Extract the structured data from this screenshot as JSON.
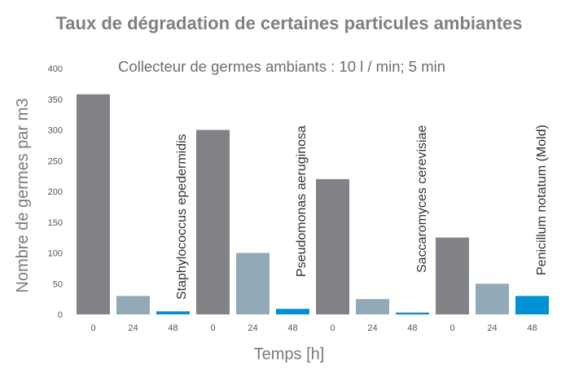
{
  "chart_data": {
    "type": "bar",
    "title": "Taux de dégradation de certaines particules ambiantes",
    "subtitle": "Collecteur de germes ambiants : 10 l / min; 5 min",
    "xlabel": "Temps [h]",
    "ylabel": "Nombre de germes par m3",
    "ylim": [
      0,
      400
    ],
    "yticks": [
      0,
      50,
      100,
      150,
      200,
      250,
      300,
      350,
      400
    ],
    "categories": [
      "0",
      "24",
      "48",
      "0",
      "24",
      "48",
      "0",
      "24",
      "48",
      "0",
      "24",
      "48"
    ],
    "values": [
      358,
      30,
      5,
      300,
      100,
      9,
      220,
      25,
      3,
      125,
      50,
      30
    ],
    "colors": [
      "#808285",
      "#92aab8",
      "#0090d4",
      "#808285",
      "#92aab8",
      "#0090d4",
      "#808285",
      "#92aab8",
      "#0090d4",
      "#808285",
      "#92aab8",
      "#0090d4"
    ],
    "groups": [
      {
        "name": "Staphylococcus epedermidis"
      },
      {
        "name": "Pseudomonas aeruginosa"
      },
      {
        "name": "Saccaromyces cerevisiae"
      },
      {
        "name": "Penicillum notatum (Mold)"
      }
    ],
    "grid": false
  }
}
